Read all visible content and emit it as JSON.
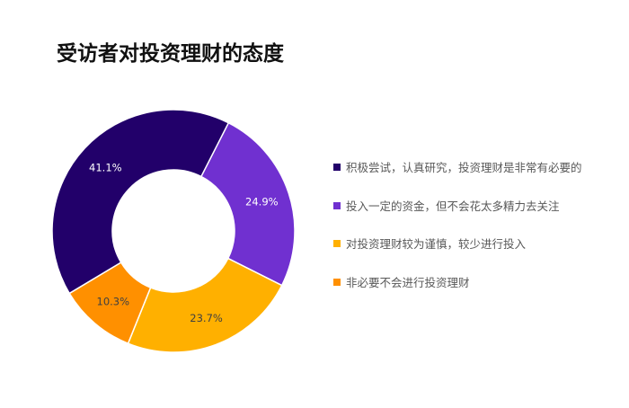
{
  "title": "受访者对投资理财的态度",
  "chart_data": {
    "type": "pie",
    "variant": "donut",
    "title": "受访者对投资理财的态度",
    "categories": [
      "积极尝试，认真研究，投资理财是非常有必要的",
      "投入一定的资金，但不会花太多精力去关注",
      "对投资理财较为谨慎，较少进行投入",
      "非必要不会进行投资理财"
    ],
    "values": [
      41.1,
      24.9,
      23.7,
      10.3
    ],
    "labels": [
      "41.1%",
      "24.9%",
      "23.7%",
      "10.3%"
    ],
    "colors": [
      "#22006A",
      "#7030D0",
      "#FFB000",
      "#FF9000"
    ],
    "label_colors": [
      "#FFFFFF",
      "#FFFFFF",
      "#404040",
      "#404040"
    ],
    "legend_position": "right"
  },
  "legend": [
    {
      "label": "积极尝试，认真研究，投资理财是非常有必要的",
      "color": "#22006A"
    },
    {
      "label": "投入一定的资金，但不会花太多精力去关注",
      "color": "#7030D0"
    },
    {
      "label": "对投资理财较为谨慎，较少进行投入",
      "color": "#FFB000"
    },
    {
      "label": "非必要不会进行投资理财",
      "color": "#FF9000"
    }
  ]
}
